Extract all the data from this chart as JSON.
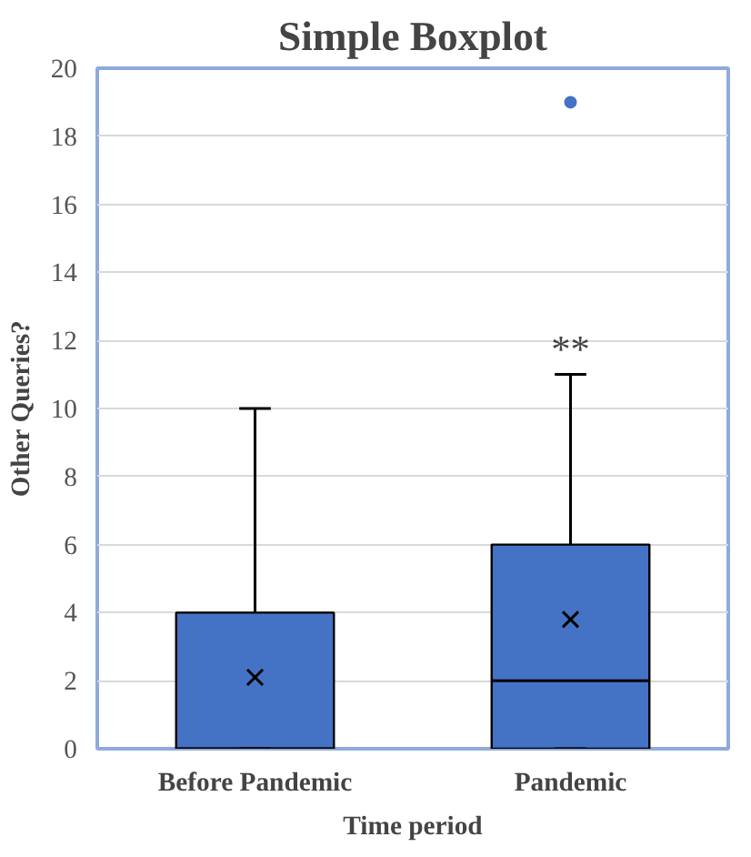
{
  "chart_data": {
    "type": "box",
    "title": "Simple Boxplot",
    "xlabel": "Time period",
    "ylabel": "Other Queries?",
    "categories": [
      "Before Pandemic",
      "Pandemic"
    ],
    "boxes": [
      {
        "low": 0,
        "q1": 0,
        "median": 0,
        "q3": 4,
        "high": 10,
        "mean": 2.1
      },
      {
        "low": 0,
        "q1": 0,
        "median": 2,
        "q3": 6,
        "high": 11,
        "mean": 3.8,
        "outliers": [
          19
        ]
      }
    ],
    "color": "#4472c4",
    "ylim": [
      0,
      20
    ],
    "yticks": [
      0,
      2,
      4,
      6,
      8,
      10,
      12,
      14,
      16,
      18,
      20
    ],
    "grid": "y",
    "annotations": [
      "**"
    ]
  }
}
